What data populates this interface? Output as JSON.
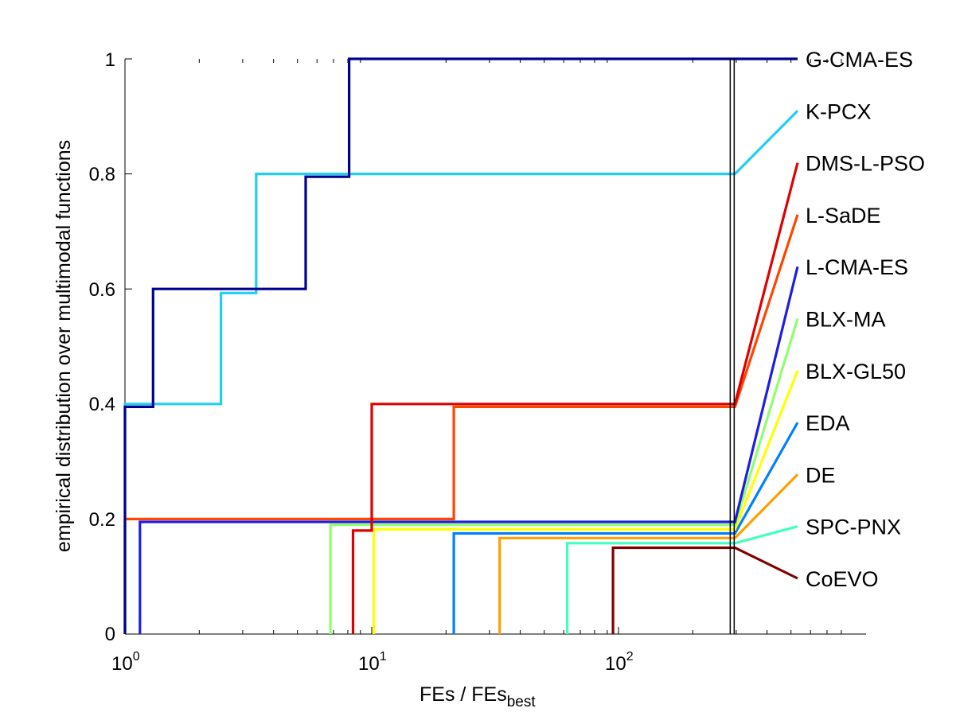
{
  "chart_data": {
    "type": "line",
    "xscale": "log",
    "xlim": [
      1,
      800
    ],
    "ylim": [
      0,
      1
    ],
    "xlabel": "FEs / FEs",
    "xlabel_subscript": "best",
    "ylabel": "empirical distribution over multimodal functions",
    "xticks": [
      {
        "base": "10",
        "exp": "0",
        "value": 1
      },
      {
        "base": "10",
        "exp": "1",
        "value": 10
      },
      {
        "base": "10",
        "exp": "2",
        "value": 100
      }
    ],
    "yticks": [
      "0",
      "0.2",
      "0.4",
      "0.6",
      "0.8",
      "1"
    ],
    "max_line_x": 290,
    "series": [
      {
        "name": "G-CMA-ES",
        "color": "#00008f",
        "end_value": 1.0,
        "steps": [
          [
            1,
            0.395
          ],
          [
            1.3,
            0.6
          ],
          [
            5.4,
            0.795
          ],
          [
            8.1,
            1.0
          ]
        ]
      },
      {
        "name": "K-PCX",
        "color": "#1fcff0",
        "end_value": 0.8,
        "steps": [
          [
            1,
            0.4
          ],
          [
            2.45,
            0.593
          ],
          [
            3.4,
            0.8
          ]
        ]
      },
      {
        "name": "DMS-L-PSO",
        "color": "#df0000",
        "end_value": 0.4,
        "steps": [
          [
            8.4,
            0.18
          ],
          [
            10.0,
            0.4
          ]
        ]
      },
      {
        "name": "L-SaDE",
        "color": "#ff4500",
        "end_value": 0.395,
        "steps": [
          [
            1,
            0.2
          ],
          [
            21.5,
            0.395
          ]
        ]
      },
      {
        "name": "L-CMA-ES",
        "color": "#1e1ee0",
        "end_value": 0.195,
        "steps": [
          [
            1.15,
            0.195
          ]
        ]
      },
      {
        "name": "BLX-MA",
        "color": "#90ff6b",
        "end_value": 0.19,
        "steps": [
          [
            6.8,
            0.19
          ]
        ]
      },
      {
        "name": "BLX-GL50",
        "color": "#ffff00",
        "end_value": 0.182,
        "steps": [
          [
            10.2,
            0.182
          ]
        ]
      },
      {
        "name": "EDA",
        "color": "#0080ff",
        "end_value": 0.175,
        "steps": [
          [
            21.5,
            0.175
          ]
        ]
      },
      {
        "name": "DE",
        "color": "#ff9f00",
        "end_value": 0.167,
        "steps": [
          [
            33,
            0.167
          ]
        ]
      },
      {
        "name": "SPC-PNX",
        "color": "#40ffbf",
        "end_value": 0.158,
        "steps": [
          [
            62,
            0.158
          ]
        ]
      },
      {
        "name": "CoEVO",
        "color": "#800000",
        "end_value": 0.15,
        "steps": [
          [
            95,
            0.15
          ]
        ]
      }
    ]
  }
}
